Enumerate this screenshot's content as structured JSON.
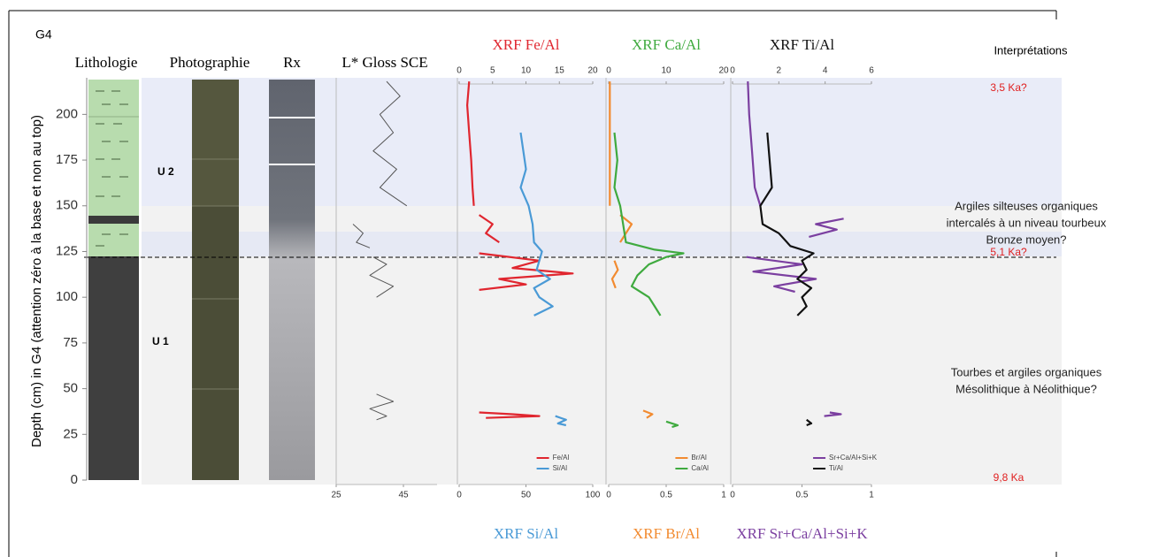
{
  "label": "G4",
  "columns": {
    "lithology": "Lithologie",
    "photo": "Photographie",
    "rx": "Rx"
  },
  "units": [
    "U 2",
    "U 1"
  ],
  "interpretation_title": "Interprétations",
  "interpretations": [
    [
      "Argiles silteuses organiques",
      "intercalés à un niveau   tourbeux",
      "Bronze moyen?"
    ],
    [
      "Tourbes et argiles organiques",
      "Mésolithique à Néolithique?"
    ]
  ],
  "ages": [
    "3,5 Ka?",
    "5,1 Ka?",
    "9,8 Ka"
  ],
  "chart_data": {
    "type": "line",
    "ylabel": "Depth (cm) in G4 (attention zéro à la base et non au top)",
    "ylim": [
      0,
      220
    ],
    "yticks": [
      0,
      25,
      50,
      75,
      100,
      125,
      150,
      175,
      200
    ],
    "panels": [
      {
        "title": "L* Gloss SCE",
        "bottom": {
          "xlim": [
            25,
            55
          ],
          "xticks": [
            25,
            45
          ]
        },
        "series": [
          {
            "color": "#555555",
            "axis": "bottom",
            "depth": [
              218,
              210,
              200,
              190,
              180,
              170,
              160,
              150,
              null,
              140,
              135,
              130,
              127,
              null,
              122,
              118,
              112,
              106,
              100,
              null,
              47,
              43,
              39,
              35,
              33
            ],
            "values": [
              40,
              44,
              38,
              42,
              36,
              43,
              38,
              46,
              null,
              30,
              33,
              31,
              35,
              null,
              36,
              40,
              35,
              42,
              37,
              null,
              37,
              42,
              35,
              40,
              37
            ]
          }
        ]
      },
      {
        "title_top": "XRF Fe/Al",
        "title_bottom": "XRF Si/Al",
        "top": {
          "xlim": [
            0,
            20
          ],
          "xticks": [
            0,
            5,
            10,
            15,
            20
          ]
        },
        "bottom": {
          "xlim": [
            0,
            100
          ],
          "xticks": [
            0,
            50,
            100
          ]
        },
        "series": [
          {
            "name": "Fe/Al",
            "color": "#e0262f",
            "axis": "top",
            "depth": [
              218,
              205,
              190,
              175,
              160,
              150,
              null,
              145,
              140,
              135,
              130,
              null,
              124,
              120,
              116,
              113,
              110,
              107,
              104,
              null,
              37,
              36,
              35,
              34
            ],
            "values": [
              1.5,
              1.2,
              1.5,
              1.8,
              2,
              2.2,
              null,
              3,
              5,
              4,
              6,
              null,
              3,
              12,
              8,
              17,
              6,
              10,
              3,
              null,
              3,
              8,
              12,
              4
            ]
          },
          {
            "name": "Si/Al",
            "color": "#4a9ad6",
            "axis": "bottom",
            "depth": [
              190,
              180,
              170,
              160,
              150,
              140,
              130,
              125,
              120,
              115,
              110,
              105,
              100,
              95,
              90,
              null,
              35,
              33,
              31,
              30
            ],
            "values": [
              46,
              48,
              50,
              46,
              52,
              55,
              56,
              62,
              60,
              58,
              68,
              56,
              60,
              70,
              56,
              null,
              72,
              80,
              74,
              80
            ]
          }
        ]
      },
      {
        "title_top": "XRF Ca/Al",
        "title_bottom": "XRF Br/Al",
        "top": {
          "xlim": [
            0,
            20
          ],
          "xticks": [
            0,
            10,
            20
          ]
        },
        "bottom": {
          "xlim": [
            0,
            1
          ],
          "xticks": [
            0,
            0.5,
            1
          ]
        },
        "series": [
          {
            "name": "Br/Al",
            "color": "#f28b30",
            "axis": "bottom",
            "depth": [
              218,
              200,
              180,
              160,
              150,
              null,
              145,
              140,
              135,
              130,
              null,
              120,
              115,
              110,
              105,
              null,
              38,
              36,
              34
            ],
            "values": [
              0.01,
              0.01,
              0.01,
              0.01,
              0.01,
              null,
              0.1,
              0.2,
              0.15,
              0.1,
              null,
              0.05,
              0.08,
              0.03,
              0.06,
              null,
              0.3,
              0.38,
              0.33
            ]
          },
          {
            "name": "Ca/Al",
            "color": "#3faa3f",
            "axis": "top",
            "depth": [
              190,
              175,
              160,
              150,
              140,
              130,
              126,
              124,
              122,
              118,
              112,
              106,
              100,
              95,
              90,
              null,
              32,
              30,
              29
            ],
            "values": [
              1,
              1.5,
              1,
              2,
              2.5,
              3,
              8,
              13,
              10,
              7,
              5,
              4,
              7,
              8,
              9,
              null,
              10,
              12,
              11
            ]
          }
        ]
      },
      {
        "title_top": "XRF Ti/Al",
        "title_bottom": "XRF Sr+Ca/Al+Si+K",
        "top": {
          "xlim": [
            0,
            6
          ],
          "xticks": [
            0,
            2,
            4,
            6
          ]
        },
        "bottom": {
          "xlim": [
            0,
            1
          ],
          "xticks": [
            0,
            0.5,
            1
          ]
        },
        "series": [
          {
            "name": "Sr+Ca/Al+Si+K",
            "color": "#7b3fa0",
            "axis": "bottom",
            "depth": [
              218,
              200,
              180,
              160,
              150,
              null,
              143,
              140,
              137,
              133,
              null,
              122,
              118,
              114,
              110,
              106,
              103,
              null,
              37,
              36,
              35
            ],
            "values": [
              0.11,
              0.12,
              0.14,
              0.16,
              0.2,
              null,
              0.8,
              0.6,
              0.75,
              0.55,
              null,
              0.1,
              0.5,
              0.15,
              0.6,
              0.3,
              0.45,
              null,
              0.7,
              0.78,
              0.66
            ]
          },
          {
            "name": "Ti/Al",
            "color": "#111111",
            "axis": "top",
            "depth": [
              190,
              175,
              160,
              150,
              140,
              135,
              128,
              124,
              120,
              115,
              110,
              105,
              100,
              95,
              90,
              null,
              33,
              31,
              30
            ],
            "values": [
              1.5,
              1.6,
              1.7,
              1.2,
              1.3,
              2,
              2.5,
              3.5,
              3,
              3.2,
              2.8,
              3.4,
              3,
              3.2,
              2.8,
              null,
              3.2,
              3.4,
              3.2
            ]
          }
        ]
      }
    ]
  }
}
